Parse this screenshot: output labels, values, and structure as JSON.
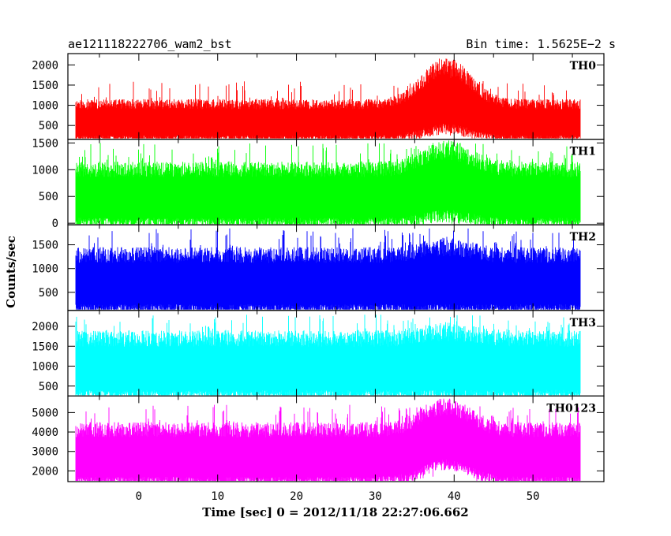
{
  "chart_data": {
    "type": "line",
    "title": "ae121118222706_wam2_bst",
    "subtitle": "Bin time: 1.5625E−2 s",
    "xlabel": "Time [sec] 0 = 2012/11/18 22:27:06.662",
    "ylabel": "Counts/sec",
    "xlim": [
      -9,
      59
    ],
    "x_ticks": [
      0,
      10,
      20,
      30,
      40,
      50
    ],
    "grid": false,
    "legend": "none",
    "data_range_x": [
      -8,
      56
    ],
    "burst": {
      "x_center": 39,
      "x_width": 3
    },
    "panels": [
      {
        "name": "TH0",
        "color": "#ff0000",
        "ylim": [
          160,
          2280
        ],
        "y_ticks": [
          500,
          1000,
          1500,
          2000
        ],
        "base_low": 250,
        "base_high": 1150,
        "spike_max": 1600,
        "burst_low": 550,
        "burst_high": 2200
      },
      {
        "name": "TH1",
        "color": "#00ff00",
        "ylim": [
          -30,
          1570
        ],
        "y_ticks": [
          0,
          500,
          1000,
          1500
        ],
        "base_low": 100,
        "base_high": 1150,
        "spike_max": 1500,
        "burst_low": 250,
        "burst_high": 1550
      },
      {
        "name": "TH2",
        "color": "#0000ff",
        "ylim": [
          120,
          1920
        ],
        "y_ticks": [
          500,
          1000,
          1500
        ],
        "base_low": 250,
        "base_high": 1450,
        "spike_max": 1850,
        "burst_low": 250,
        "burst_high": 1650
      },
      {
        "name": "TH3",
        "color": "#00ffff",
        "ylim": [
          250,
          2400
        ],
        "y_ticks": [
          500,
          1000,
          1500,
          2000
        ],
        "base_low": 400,
        "base_high": 1900,
        "spike_max": 2300,
        "burst_low": 400,
        "burst_high": 2100
      },
      {
        "name": "TH0123",
        "color": "#ff00ff",
        "ylim": [
          1450,
          5850
        ],
        "y_ticks": [
          2000,
          3000,
          4000,
          5000
        ],
        "base_low": 1700,
        "base_high": 4500,
        "spike_max": 5400,
        "burst_low": 2600,
        "burst_high": 5750
      }
    ]
  }
}
